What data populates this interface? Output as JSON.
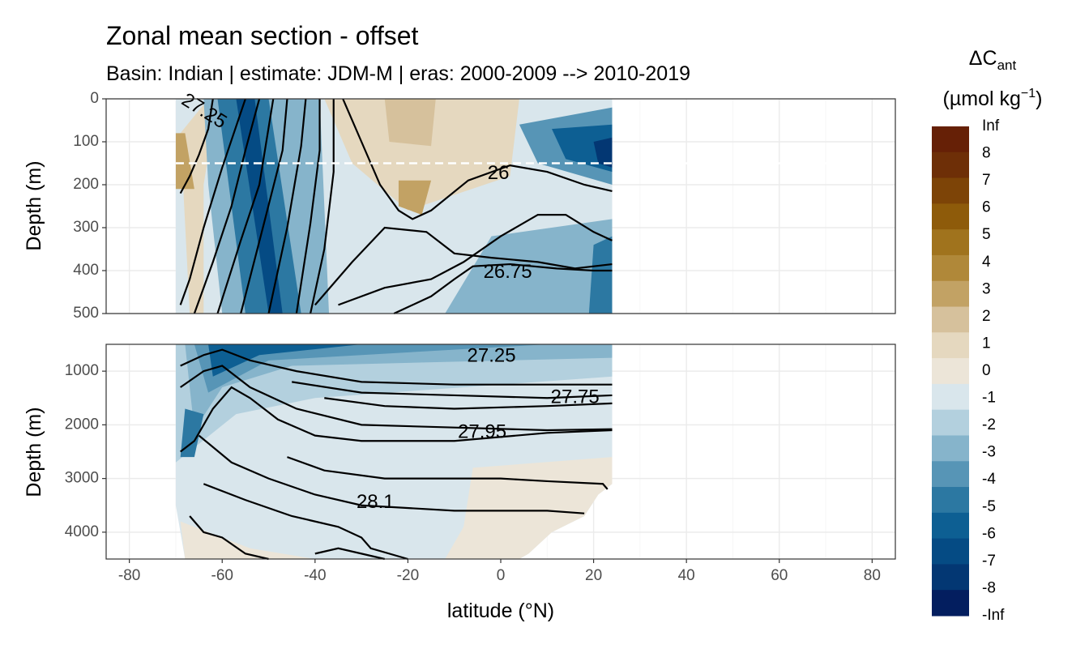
{
  "chart_data": {
    "type": "heatmap",
    "title": "Zonal mean section - offset",
    "subtitle": "Basin: Indian | estimate: JDM-M | eras: 2000-2009 --> 2010-2019",
    "xlabel": "latitude (°N)",
    "ylabel": "Depth (m)",
    "x_ticks": [
      -80,
      -60,
      -40,
      -20,
      0,
      20,
      40,
      60,
      80
    ],
    "x_tick_labels": [
      "-80",
      "-60",
      "-40",
      "-20",
      "0",
      "20",
      "40",
      "60",
      "80"
    ],
    "xlim": [
      -85,
      85
    ],
    "data_x_range": [
      -70,
      24
    ],
    "panels": [
      {
        "name": "upper",
        "ylim": [
          0,
          500
        ],
        "y_ticks": [
          0,
          100,
          200,
          300,
          400,
          500
        ],
        "y_tick_labels": [
          "0",
          "100",
          "200",
          "300",
          "400",
          "500"
        ],
        "reference_line_depth": 150,
        "contour_labels": [
          {
            "text": "27.25",
            "lat": -64,
            "depth": 30
          },
          {
            "text": "26",
            "lat": -0.5,
            "depth": 175
          },
          {
            "text": "26.75",
            "lat": 1.5,
            "depth": 405
          }
        ]
      },
      {
        "name": "lower",
        "ylim": [
          500,
          4500
        ],
        "y_ticks": [
          1000,
          2000,
          3000,
          4000
        ],
        "y_tick_labels": [
          "1000",
          "2000",
          "3000",
          "4000"
        ],
        "contour_labels": [
          {
            "text": "27.25",
            "lat": -2,
            "depth": 730
          },
          {
            "text": "27.75",
            "lat": 16,
            "depth": 1500
          },
          {
            "text": "27.95",
            "lat": -4,
            "depth": 2150
          },
          {
            "text": "28.1",
            "lat": -27,
            "depth": 3450
          }
        ]
      }
    ],
    "legend": {
      "title": "ΔC",
      "title_subscript": "ant",
      "unit_prefix": "(µmol kg",
      "unit_exponent": "−1",
      "unit_suffix": ")",
      "labels": [
        "Inf",
        "8",
        "7",
        "6",
        "5",
        "4",
        "3",
        "2",
        "1",
        "0",
        "-1",
        "-2",
        "-3",
        "-4",
        "-5",
        "-6",
        "-7",
        "-8",
        "-Inf"
      ],
      "colors": [
        "#662006",
        "#6e2f07",
        "#7d4407",
        "#8e5b0a",
        "#a0731d",
        "#b08839",
        "#c2a264",
        "#d6c19c",
        "#e5d8bf",
        "#ece5d8",
        "#d9e6ec",
        "#b3d0de",
        "#86b4cb",
        "#5795b6",
        "#2c78a2",
        "#0d5f93",
        "#054b84",
        "#033773",
        "#031e5f"
      ]
    },
    "grid": true
  }
}
